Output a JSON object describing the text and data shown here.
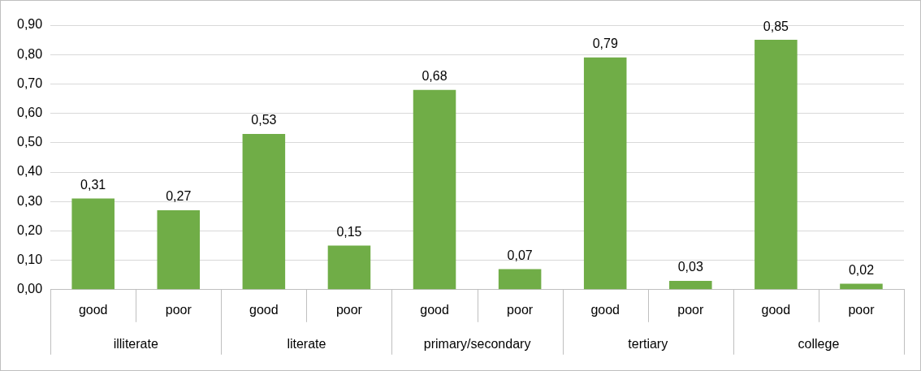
{
  "chart_data": {
    "type": "bar",
    "categories": [
      "good",
      "poor",
      "good",
      "poor",
      "good",
      "poor",
      "good",
      "poor",
      "good",
      "poor"
    ],
    "values": [
      0.31,
      0.27,
      0.53,
      0.15,
      0.68,
      0.07,
      0.79,
      0.03,
      0.85,
      0.02
    ],
    "value_labels": [
      "0,31",
      "0,27",
      "0,53",
      "0,15",
      "0,68",
      "0,07",
      "0,79",
      "0,03",
      "0,85",
      "0,02"
    ],
    "color": "#70ad47",
    "ylim": [
      0,
      0.9
    ],
    "yticks": [
      {
        "value": 0,
        "label": "0,00"
      },
      {
        "value": 0.1,
        "label": "0,10"
      },
      {
        "value": 0.2,
        "label": "0,20"
      },
      {
        "value": 0.3,
        "label": "0,30"
      },
      {
        "value": 0.4,
        "label": "0,40"
      },
      {
        "value": 0.5,
        "label": "0,50"
      },
      {
        "value": 0.6,
        "label": "0,60"
      },
      {
        "value": 0.7,
        "label": "0,70"
      },
      {
        "value": 0.8,
        "label": "0,80"
      },
      {
        "value": 0.9,
        "label": "0,90"
      }
    ],
    "annotations": [
      "illiterate",
      "literate",
      "primary/secondary",
      "tertiary",
      "college"
    ],
    "grid": "y",
    "legend": false
  }
}
